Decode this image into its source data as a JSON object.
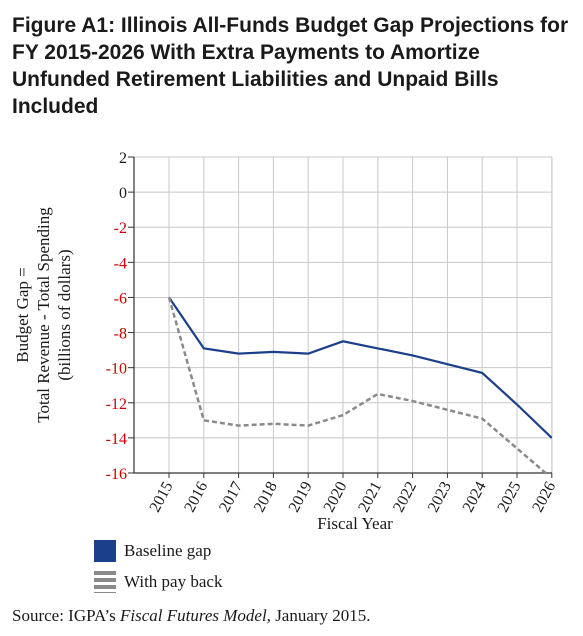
{
  "figure_label": "Figure A1:",
  "title_text": "Illinois All-Funds Budget Gap Projections for FY 2015-2026 With Extra Payments to Amortize Unfunded Retirement Liabilities and Unpaid Bills Included",
  "source": {
    "prefix": "Source: IGPA’s ",
    "model": "Fiscal Futures Model,",
    "suffix": " January 2015."
  },
  "chart_data": {
    "type": "line",
    "title": "Illinois All-Funds Budget Gap Projections for FY 2015-2026 With Extra Payments to Amortize Unfunded Retirement Liabilities and Unpaid Bills Included",
    "xlabel": "Fiscal Year",
    "ylabel_lines": [
      "Budget Gap =",
      "Total Revenue - Total Spending",
      "(billions of dollars)"
    ],
    "x": [
      2015,
      2016,
      2017,
      2018,
      2019,
      2020,
      2021,
      2022,
      2023,
      2024,
      2025,
      2026
    ],
    "ylim": [
      -16,
      2
    ],
    "yticks": [
      2,
      0,
      -2,
      -4,
      -6,
      -8,
      -10,
      -12,
      -14,
      -16
    ],
    "grid": true,
    "legend_position": "bottom-left",
    "negative_tick_color": "#cc0000",
    "series": [
      {
        "name": "Baseline gap",
        "color": "#1c3f8c",
        "dash": "solid",
        "values": [
          -6.0,
          -8.9,
          -9.2,
          -9.1,
          -9.2,
          -8.5,
          -8.9,
          -9.3,
          -9.8,
          -10.3,
          -12.1,
          -14.0
        ]
      },
      {
        "name": "With pay back",
        "color": "#8a8a8a",
        "dash": "dashed",
        "values": [
          -6.0,
          -13.0,
          -13.3,
          -13.2,
          -13.3,
          -12.7,
          -11.5,
          -11.9,
          -12.4,
          -12.9,
          -14.6,
          -16.3
        ]
      }
    ]
  }
}
